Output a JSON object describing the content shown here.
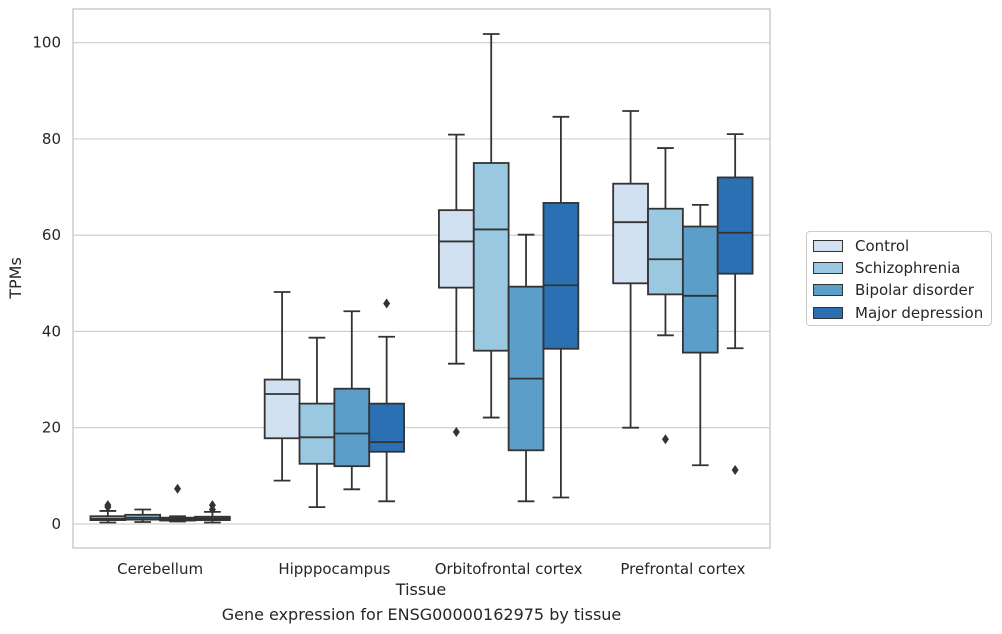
{
  "caption": "Gene expression for ENSG00000162975 by tissue",
  "chart_data": {
    "type": "box",
    "xlabel": "Tissue",
    "ylabel": "TPMs",
    "categories": [
      "Cerebellum",
      "Hipppocampus",
      "Orbitofrontal cortex",
      "Prefrontal cortex"
    ],
    "ylim": [
      -5,
      107
    ],
    "yticks": [
      0,
      20,
      40,
      60,
      80,
      100
    ],
    "grid": true,
    "legend_position": "right",
    "series": [
      {
        "name": "Control",
        "color": "#d1e1f1",
        "boxes": [
          {
            "whislo": 0.3,
            "q1": 0.8,
            "med": 1.1,
            "q3": 1.6,
            "whishi": 2.7,
            "fliers": [
              3.9,
              3.5
            ]
          },
          {
            "whislo": 9.0,
            "q1": 17.8,
            "med": 27.0,
            "q3": 30.0,
            "whishi": 48.2,
            "fliers": []
          },
          {
            "whislo": 33.3,
            "q1": 49.1,
            "med": 58.7,
            "q3": 65.2,
            "whishi": 80.9,
            "fliers": [
              19.1
            ]
          },
          {
            "whislo": 20.0,
            "q1": 50.0,
            "med": 62.7,
            "q3": 70.7,
            "whishi": 85.8,
            "fliers": []
          }
        ]
      },
      {
        "name": "Schizophrenia",
        "color": "#9ac8e0",
        "boxes": [
          {
            "whislo": 0.4,
            "q1": 0.9,
            "med": 1.3,
            "q3": 1.9,
            "whishi": 3.0,
            "fliers": []
          },
          {
            "whislo": 3.5,
            "q1": 12.5,
            "med": 18.0,
            "q3": 25.0,
            "whishi": 38.7,
            "fliers": []
          },
          {
            "whislo": 22.1,
            "q1": 36.0,
            "med": 61.2,
            "q3": 75.0,
            "whishi": 101.8,
            "fliers": []
          },
          {
            "whislo": 39.2,
            "q1": 47.7,
            "med": 55.0,
            "q3": 65.5,
            "whishi": 78.1,
            "fliers": [
              17.6
            ]
          }
        ]
      },
      {
        "name": "Bipolar disorder",
        "color": "#5a9ec9",
        "boxes": [
          {
            "whislo": 0.5,
            "q1": 0.7,
            "med": 1.0,
            "q3": 1.3,
            "whishi": 1.6,
            "fliers": [
              7.3
            ]
          },
          {
            "whislo": 7.2,
            "q1": 12.0,
            "med": 18.8,
            "q3": 28.1,
            "whishi": 44.2,
            "fliers": []
          },
          {
            "whislo": 4.7,
            "q1": 15.3,
            "med": 30.2,
            "q3": 49.3,
            "whishi": 60.1,
            "fliers": []
          },
          {
            "whislo": 12.2,
            "q1": 35.6,
            "med": 47.4,
            "q3": 61.8,
            "whishi": 66.3,
            "fliers": []
          }
        ]
      },
      {
        "name": "Major depression",
        "color": "#2a70b3",
        "boxes": [
          {
            "whislo": 0.3,
            "q1": 0.8,
            "med": 1.1,
            "q3": 1.5,
            "whishi": 2.5,
            "fliers": [
              3.9,
              3.0
            ]
          },
          {
            "whislo": 4.7,
            "q1": 15.0,
            "med": 17.0,
            "q3": 25.0,
            "whishi": 38.9,
            "fliers": [
              45.8
            ]
          },
          {
            "whislo": 5.5,
            "q1": 36.4,
            "med": 49.6,
            "q3": 66.7,
            "whishi": 84.6,
            "fliers": []
          },
          {
            "whislo": 36.5,
            "q1": 52.0,
            "med": 60.5,
            "q3": 72.0,
            "whishi": 81.0,
            "fliers": [
              11.2
            ]
          }
        ]
      }
    ]
  }
}
